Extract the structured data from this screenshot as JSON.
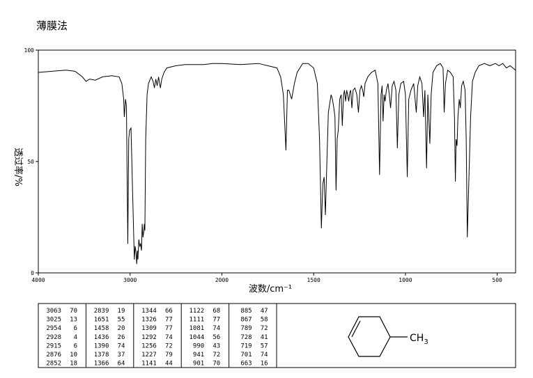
{
  "chart_data": {
    "type": "line",
    "title": "薄膜法",
    "x_label": "波数/cm⁻¹",
    "y_label": "透过率/%",
    "xlim": [
      4000,
      400
    ],
    "ylim": [
      0,
      100
    ],
    "xticks": [
      4000,
      3000,
      2000,
      1500,
      1000,
      500
    ],
    "yticks": [
      0,
      50,
      100
    ],
    "color": "#000000",
    "x": [
      4000,
      3850,
      3700,
      3600,
      3520,
      3480,
      3440,
      3380,
      3300,
      3200,
      3120,
      3090,
      3070,
      3063,
      3050,
      3040,
      3025,
      3015,
      3005,
      2990,
      2975,
      2954,
      2945,
      2935,
      2928,
      2920,
      2915,
      2905,
      2895,
      2885,
      2876,
      2868,
      2860,
      2852,
      2845,
      2839,
      2830,
      2815,
      2800,
      2770,
      2750,
      2735,
      2720,
      2705,
      2690,
      2670,
      2655,
      2630,
      2600,
      2500,
      2400,
      2300,
      2200,
      2100,
      2000,
      1900,
      1800,
      1750,
      1700,
      1680,
      1665,
      1651,
      1643,
      1635,
      1620,
      1605,
      1590,
      1560,
      1530,
      1500,
      1480,
      1468,
      1458,
      1450,
      1443,
      1436,
      1428,
      1420,
      1405,
      1398,
      1390,
      1384,
      1378,
      1372,
      1366,
      1358,
      1350,
      1344,
      1337,
      1332,
      1326,
      1320,
      1315,
      1309,
      1303,
      1298,
      1292,
      1285,
      1275,
      1265,
      1256,
      1248,
      1240,
      1233,
      1227,
      1220,
      1205,
      1185,
      1165,
      1150,
      1141,
      1133,
      1127,
      1122,
      1116,
      1111,
      1104,
      1095,
      1088,
      1081,
      1072,
      1062,
      1052,
      1044,
      1036,
      1025,
      1010,
      1000,
      990,
      982,
      970,
      955,
      941,
      933,
      922,
      910,
      901,
      894,
      885,
      878,
      867,
      860,
      850,
      830,
      810,
      795,
      789,
      782,
      770,
      755,
      740,
      733,
      728,
      724,
      719,
      714,
      707,
      701,
      694,
      685,
      675,
      669,
      663,
      655,
      645,
      635,
      620,
      600,
      570,
      540,
      510,
      490,
      470,
      450,
      430,
      415,
      400
    ],
    "values": [
      90,
      90.5,
      91,
      90.5,
      88,
      86,
      87,
      86.5,
      88,
      88.5,
      88,
      85,
      78,
      70,
      78,
      75,
      13,
      60,
      64,
      65,
      40,
      6,
      12,
      9,
      4,
      10,
      6,
      15,
      12,
      13,
      10,
      22,
      16,
      18,
      22,
      19,
      60,
      80,
      85,
      88,
      86,
      83,
      87,
      84,
      88,
      83,
      87,
      90,
      92,
      93,
      93.5,
      93.5,
      93.5,
      94,
      94,
      93.5,
      94,
      93,
      92,
      88,
      80,
      55,
      82,
      82,
      78,
      85,
      90,
      94,
      94,
      92,
      85,
      60,
      20,
      40,
      43,
      26,
      50,
      72,
      80,
      78,
      74,
      70,
      37,
      60,
      64,
      78,
      80,
      66,
      80,
      82,
      77,
      82,
      80,
      77,
      81,
      82,
      74,
      82,
      83,
      80,
      72,
      82,
      84,
      82,
      79,
      85,
      88,
      90,
      91,
      85,
      44,
      80,
      84,
      68,
      80,
      77,
      82,
      85,
      80,
      74,
      84,
      86,
      82,
      56,
      80,
      85,
      86,
      80,
      43,
      78,
      82,
      85,
      72,
      84,
      88,
      85,
      70,
      82,
      47,
      80,
      58,
      80,
      90,
      93,
      94,
      92,
      72,
      85,
      91,
      90,
      88,
      70,
      41,
      60,
      57,
      70,
      78,
      74,
      84,
      86,
      82,
      60,
      16,
      40,
      70,
      86,
      90,
      93,
      94,
      93,
      94,
      93,
      94,
      92,
      93,
      92,
      91
    ],
    "molecule_label": "CH",
    "molecule_subscript": "3"
  },
  "peak_table": {
    "groups": [
      [
        [
          3063,
          70
        ],
        [
          3025,
          13
        ],
        [
          2954,
          6
        ],
        [
          2928,
          4
        ],
        [
          2915,
          6
        ],
        [
          2876,
          10
        ],
        [
          2852,
          18
        ]
      ],
      [
        [
          2839,
          19
        ],
        [
          1651,
          55
        ],
        [
          1458,
          20
        ],
        [
          1436,
          26
        ],
        [
          1390,
          74
        ],
        [
          1378,
          37
        ],
        [
          1366,
          64
        ]
      ],
      [
        [
          1344,
          66
        ],
        [
          1326,
          77
        ],
        [
          1309,
          77
        ],
        [
          1292,
          74
        ],
        [
          1256,
          72
        ],
        [
          1227,
          79
        ],
        [
          1141,
          44
        ]
      ],
      [
        [
          1122,
          68
        ],
        [
          1111,
          77
        ],
        [
          1081,
          74
        ],
        [
          1044,
          56
        ],
        [
          990,
          43
        ],
        [
          941,
          72
        ],
        [
          901,
          70
        ]
      ],
      [
        [
          885,
          47
        ],
        [
          867,
          58
        ],
        [
          789,
          72
        ],
        [
          728,
          41
        ],
        [
          719,
          57
        ],
        [
          701,
          74
        ],
        [
          663,
          16
        ]
      ]
    ]
  }
}
